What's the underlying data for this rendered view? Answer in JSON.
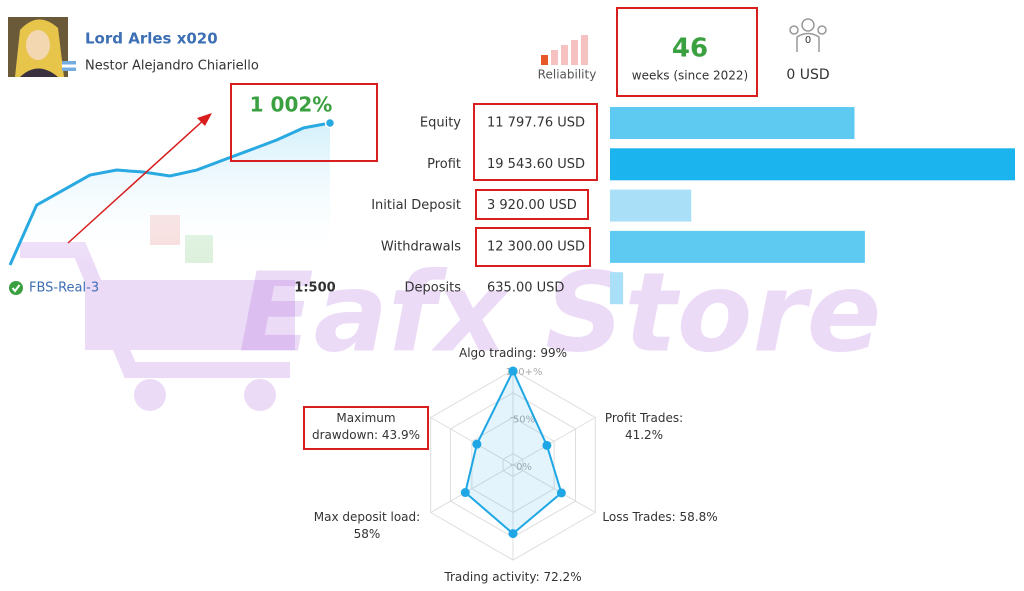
{
  "header": {
    "name": "Lord Arles x020",
    "owner": "Nestor Alejandro Chiariello"
  },
  "reliability": {
    "label": "Reliability"
  },
  "weeks": {
    "value": 46,
    "label": "weeks (since 2022)"
  },
  "subscribers": {
    "count": 0,
    "funds": "0 USD"
  },
  "growth": {
    "label": "1 002%",
    "values": [
      0,
      423,
      529,
      635,
      670,
      656,
      628,
      670,
      741,
      811,
      882,
      967,
      1002
    ],
    "color": "#29a9e1"
  },
  "account": {
    "server": "FBS-Real-3",
    "leverage": "1:500"
  },
  "stats": {
    "labels": [
      "Equity",
      "Profit",
      "Initial Deposit",
      "Withdrawals",
      "Deposits"
    ],
    "values": [
      11797.76,
      19543.6,
      3920,
      12300,
      635
    ],
    "value_labels": [
      "11 797.76 USD",
      "19 543.60 USD",
      "3 920.00 USD",
      "12 300.00 USD",
      "635.00 USD"
    ],
    "colors": [
      "#5ecaf2",
      "#1cb4ee",
      "#a9e0f7",
      "#5ecaf2",
      "#a9e0f7"
    ]
  },
  "radar": {
    "labels": [
      "Algo trading:",
      "Profit Trades:",
      "Loss Trades:",
      "Trading activity:",
      "Max deposit load:",
      "Maximum drawdown:"
    ],
    "values": [
      99,
      41.2,
      58.8,
      72.2,
      58,
      43.9
    ],
    "value_labels": [
      "99%",
      "41.2%",
      "58.8%",
      "72.2%",
      "58%",
      "43.9%"
    ],
    "rlim": [
      0,
      100
    ],
    "rticks": [
      {
        "value": 0,
        "label": "0%"
      },
      {
        "value": 50,
        "label": "50%"
      },
      {
        "value": 100,
        "label": "100+%"
      }
    ],
    "color": "#1ea7e4"
  },
  "watermark": "Eafx Store"
}
